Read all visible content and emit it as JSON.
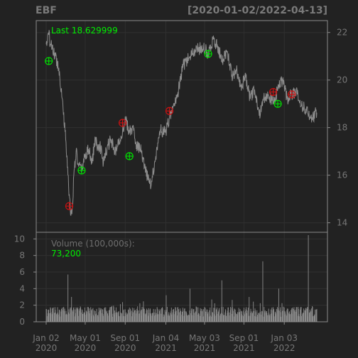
{
  "chart_data": {
    "type": "line",
    "symbol": "EBF",
    "date_range": "[2020-01-02/2022-04-13]",
    "price_panel": {
      "last_label": "Last 18.629999",
      "y_ticks": [
        "14",
        "16",
        "18",
        "20",
        "22"
      ],
      "ylim": [
        13.6,
        22.5
      ],
      "series": [
        {
          "x": [
            "2020-01-02",
            "2020-01-10",
            "2020-01-20",
            "2020-01-30",
            "2020-02-10",
            "2020-02-21",
            "2020-03-02",
            "2020-03-09",
            "2020-03-13",
            "2020-03-18",
            "2020-03-23",
            "2020-03-27",
            "2020-04-03",
            "2020-04-10",
            "2020-04-20",
            "2020-04-30",
            "2020-05-11",
            "2020-05-22",
            "2020-06-01",
            "2020-06-08",
            "2020-06-15",
            "2020-06-26",
            "2020-07-08",
            "2020-07-20",
            "2020-07-31",
            "2020-08-12",
            "2020-08-24",
            "2020-09-02",
            "2020-09-14",
            "2020-09-24",
            "2020-10-06",
            "2020-10-20",
            "2020-10-30",
            "2020-11-09",
            "2020-11-20",
            "2020-12-04",
            "2020-12-18",
            "2021-01-04",
            "2021-01-15",
            "2021-01-29",
            "2021-02-12",
            "2021-02-26",
            "2021-03-15",
            "2021-03-31",
            "2021-04-15",
            "2021-04-30",
            "2021-05-14",
            "2021-05-28",
            "2021-06-11",
            "2021-06-25",
            "2021-07-12",
            "2021-07-26",
            "2021-08-09",
            "2021-08-23",
            "2021-09-07",
            "2021-09-20",
            "2021-10-04",
            "2021-10-18",
            "2021-11-01",
            "2021-11-15",
            "2021-11-30",
            "2021-12-14",
            "2021-12-29",
            "2022-01-12",
            "2022-01-26",
            "2022-02-09",
            "2022-02-24",
            "2022-03-10",
            "2022-03-24",
            "2022-04-13"
          ],
          "y": [
            21.5,
            21.9,
            21.3,
            21.0,
            20.5,
            19.2,
            17.5,
            16.0,
            15.2,
            14.3,
            14.7,
            16.0,
            17.0,
            16.4,
            16.2,
            16.8,
            17.1,
            16.5,
            17.6,
            17.1,
            17.3,
            16.5,
            17.2,
            17.5,
            16.9,
            17.4,
            17.9,
            18.3,
            17.8,
            18.0,
            17.3,
            17.0,
            16.3,
            15.9,
            15.6,
            16.8,
            17.9,
            17.8,
            18.4,
            18.9,
            19.6,
            20.6,
            20.9,
            21.2,
            21.3,
            21.4,
            21.1,
            21.7,
            21.5,
            20.8,
            21.2,
            20.2,
            20.4,
            19.8,
            20.1,
            19.2,
            19.6,
            18.5,
            19.3,
            19.4,
            19.0,
            19.6,
            20.0,
            19.2,
            19.4,
            19.6,
            18.9,
            18.8,
            18.4,
            18.63
          ]
        }
      ],
      "markers": [
        {
          "date": "2020-01-10",
          "price": 20.8,
          "signal": "buy"
        },
        {
          "date": "2020-03-13",
          "price": 14.7,
          "signal": "sell"
        },
        {
          "date": "2020-04-20",
          "price": 16.2,
          "signal": "buy"
        },
        {
          "date": "2020-08-24",
          "price": 18.2,
          "signal": "sell"
        },
        {
          "date": "2020-09-14",
          "price": 16.8,
          "signal": "buy"
        },
        {
          "date": "2021-01-15",
          "price": 18.7,
          "signal": "sell"
        },
        {
          "date": "2021-05-14",
          "price": 21.1,
          "signal": "buy"
        },
        {
          "date": "2021-11-30",
          "price": 19.5,
          "signal": "sell"
        },
        {
          "date": "2021-12-14",
          "price": 19.0,
          "signal": "buy"
        },
        {
          "date": "2022-01-26",
          "price": 19.4,
          "signal": "sell"
        }
      ]
    },
    "volume_panel": {
      "label": "Volume (100,000s):",
      "last_value": "73,200",
      "y_ticks": [
        "0",
        "2",
        "4",
        "6",
        "8",
        "10"
      ],
      "ylim": [
        0,
        10.2
      ],
      "typical_range": [
        0.6,
        1.8
      ],
      "spikes": [
        {
          "date": "2020-03-09",
          "value": 5.7
        },
        {
          "date": "2020-03-20",
          "value": 3.0
        },
        {
          "date": "2021-01-05",
          "value": 3.2
        },
        {
          "date": "2021-03-19",
          "value": 4.0
        },
        {
          "date": "2021-06-25",
          "value": 5.0
        },
        {
          "date": "2021-09-17",
          "value": 3.0
        },
        {
          "date": "2021-10-29",
          "value": 7.3
        },
        {
          "date": "2021-12-17",
          "value": 4.0
        },
        {
          "date": "2022-03-18",
          "value": 10.5
        }
      ]
    },
    "x_ticks": [
      {
        "date": "2020-01-02",
        "line1": "Jan 02",
        "line2": "2020"
      },
      {
        "date": "2020-05-01",
        "line1": "May 01",
        "line2": "2020"
      },
      {
        "date": "2020-09-01",
        "line1": "Sep 01",
        "line2": "2020"
      },
      {
        "date": "2021-01-04",
        "line1": "Jan 04",
        "line2": "2021"
      },
      {
        "date": "2021-05-03",
        "line1": "May 03",
        "line2": "2021"
      },
      {
        "date": "2021-09-01",
        "line1": "Sep 01",
        "line2": "2021"
      },
      {
        "date": "2022-01-03",
        "line1": "Jan 03",
        "line2": "2022"
      }
    ],
    "x_start": "2020-01-02",
    "x_end": "2022-04-13",
    "grid": true,
    "colors": {
      "background": "#222222",
      "frame": "#8a8a8a",
      "grid": "#303030",
      "price_line": "#8c8c8c",
      "volume_bars": "#8c8c8c",
      "buy_marker": "#00dd00",
      "sell_marker": "#cc1111",
      "highlight_text": "#00ee00",
      "axis_text": "#777777"
    }
  }
}
